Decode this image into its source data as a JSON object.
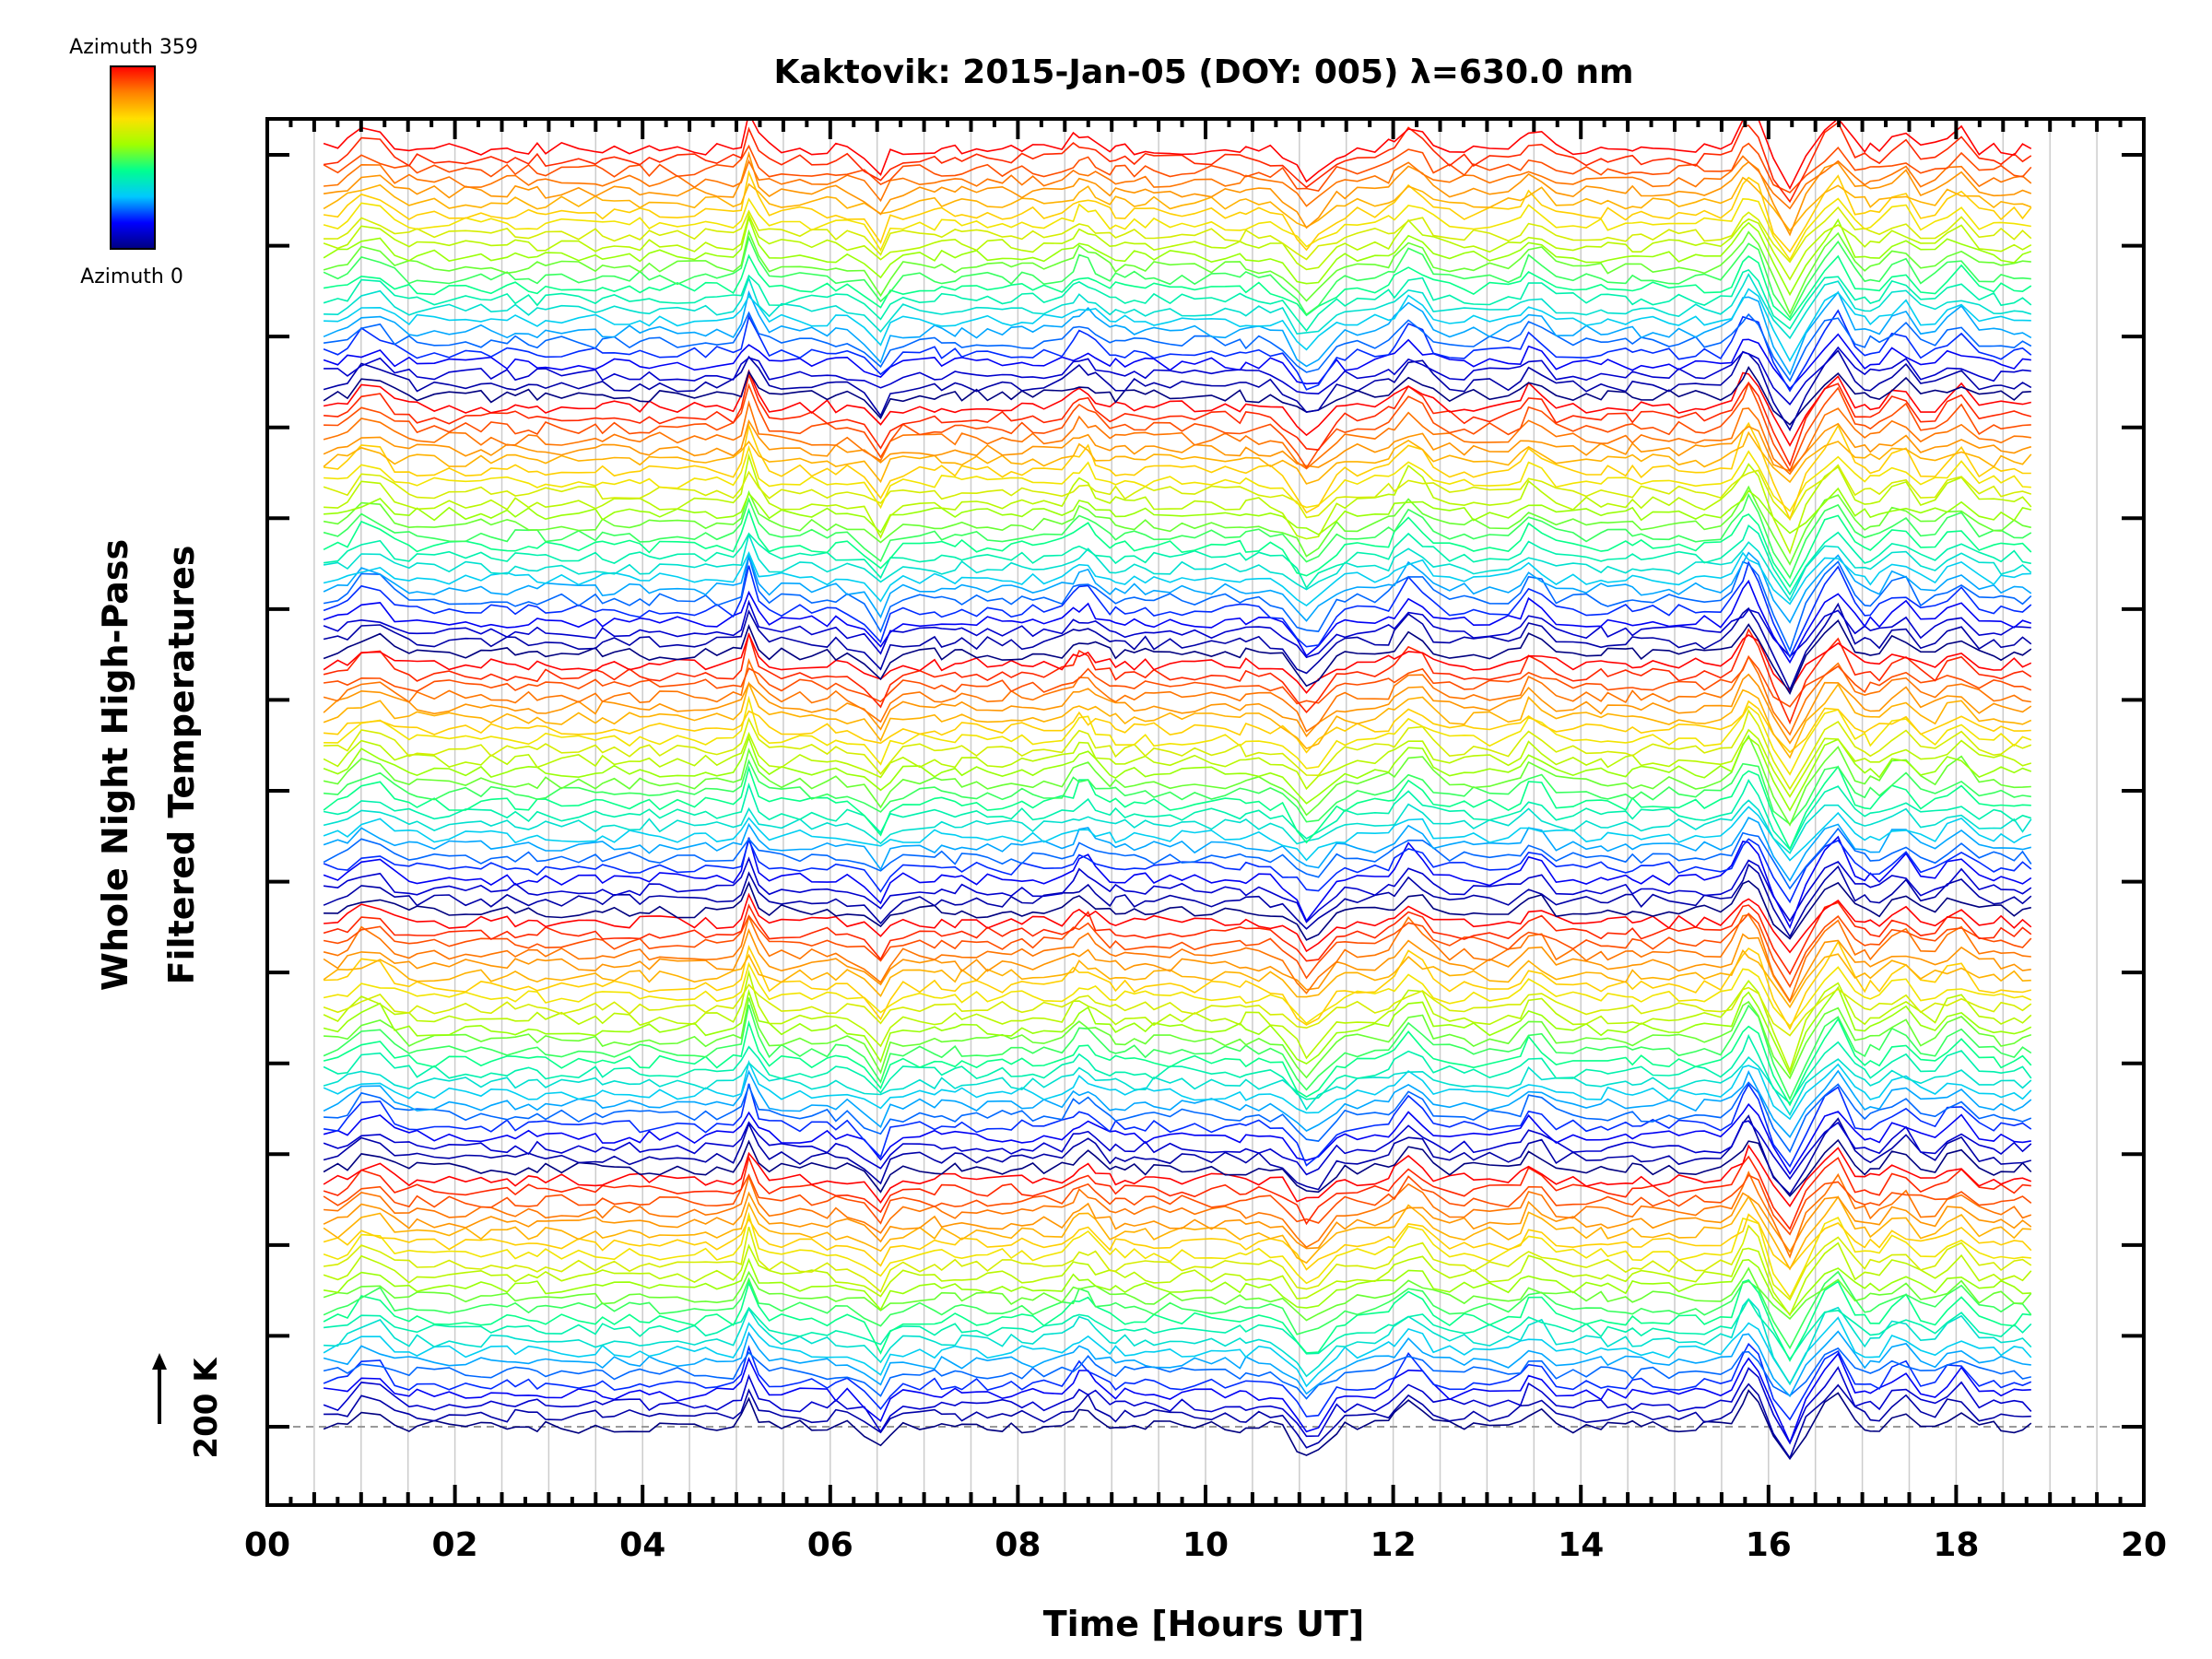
{
  "chart_data": {
    "type": "line",
    "title": "Kaktovik: 2015-Jan-05 (DOY: 005) λ=630.0 nm",
    "xlabel": "Time [Hours UT]",
    "ylabel_line1": "Whole Night High-Pass",
    "ylabel_line2": "Filtered Temperatures",
    "scale_marker": "200 K",
    "xlim": [
      0,
      20
    ],
    "x_ticks": [
      {
        "value": 0,
        "label": "00"
      },
      {
        "value": 2,
        "label": "02"
      },
      {
        "value": 4,
        "label": "04"
      },
      {
        "value": 6,
        "label": "06"
      },
      {
        "value": 8,
        "label": "08"
      },
      {
        "value": 10,
        "label": "10"
      },
      {
        "value": 12,
        "label": "12"
      },
      {
        "value": 14,
        "label": "14"
      },
      {
        "value": 16,
        "label": "16"
      },
      {
        "value": 18,
        "label": "18"
      },
      {
        "value": 20,
        "label": "20"
      }
    ],
    "y_major_tick_count": 15,
    "time_range_hours": [
      0.6,
      18.8
    ],
    "baseline_k": 200,
    "series_count": 120,
    "series_color_encoding": "azimuth (0 to 359 degrees)",
    "colorbar": {
      "top_label": "Azimuth 359",
      "bottom_label": "Azimuth 0",
      "colormap": "rainbow",
      "stops": [
        "#000080",
        "#0000ff",
        "#00c8ff",
        "#00ff90",
        "#a0ff00",
        "#ffe000",
        "#ff8000",
        "#ff0000"
      ]
    },
    "axis_color": "#000000",
    "grid_color": "#cccccc"
  }
}
